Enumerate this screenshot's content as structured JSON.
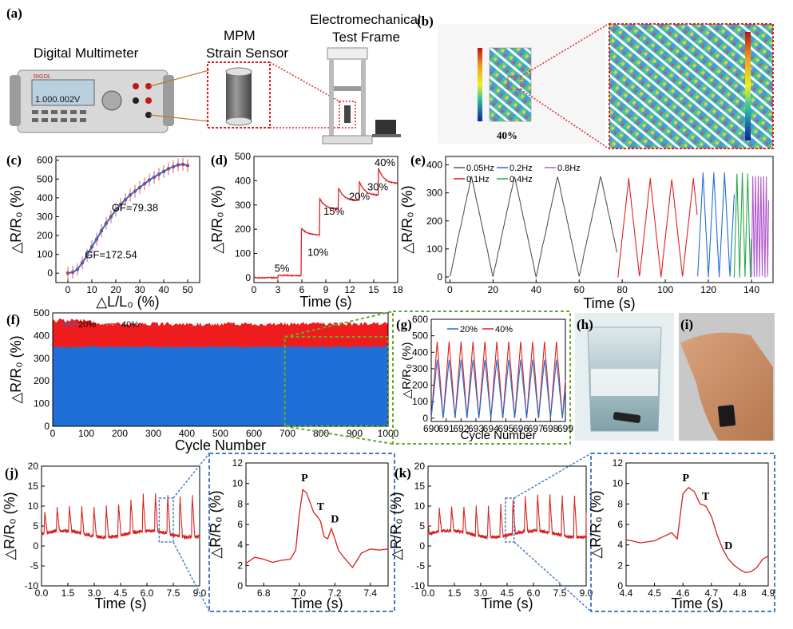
{
  "labels": {
    "a": "(a)",
    "b": "(b)",
    "c": "(c)",
    "d": "(d)",
    "e": "(e)",
    "f": "(f)",
    "g": "(g)",
    "h": "(h)",
    "i": "(i)",
    "j": "(j)",
    "k": "(k)"
  },
  "panel_a": {
    "multimeter": "Digital Multimeter",
    "sensor": "MPM\nStrain Sensor",
    "frame": "Electromechanical\nTest Frame",
    "display": "1.000.002V",
    "brand": "RIGOL"
  },
  "panel_b": {
    "strain": "40%"
  },
  "colors": {
    "red": "#e02020",
    "blue": "#1f6fd6",
    "gray": "#555555",
    "green": "#2aa84a",
    "purple": "#b05ad0",
    "dred": "#d62020"
  },
  "chart_data": [
    {
      "id": "c",
      "type": "scatter",
      "xlabel": "△L/L₀ (%)",
      "ylabel": "△R/R₀ (%)",
      "xlim": [
        -5,
        55
      ],
      "ylim": [
        -50,
        620
      ],
      "xticks": [
        0,
        10,
        20,
        30,
        40,
        50
      ],
      "yticks": [
        0,
        100,
        200,
        300,
        400,
        500,
        600
      ],
      "x": [
        0,
        2,
        4,
        6,
        8,
        10,
        12,
        14,
        16,
        18,
        20,
        22,
        24,
        26,
        28,
        30,
        32,
        34,
        36,
        38,
        40,
        42,
        44,
        46,
        48,
        50
      ],
      "y": [
        0,
        5,
        20,
        55,
        95,
        140,
        180,
        225,
        265,
        300,
        335,
        365,
        390,
        415,
        435,
        455,
        475,
        495,
        510,
        525,
        540,
        555,
        565,
        575,
        578,
        572
      ],
      "annotations": [
        {
          "text": "GF=172.54",
          "x": 18,
          "y": 80
        },
        {
          "text": "GF=79.38",
          "x": 28,
          "y": 330
        }
      ]
    },
    {
      "id": "d",
      "type": "line",
      "xlabel": "Time (s)",
      "ylabel": "△R/R₀ (%)",
      "xlim": [
        0,
        18
      ],
      "ylim": [
        -20,
        500
      ],
      "xticks": [
        0,
        3,
        6,
        9,
        12,
        15,
        18
      ],
      "yticks": [
        0,
        100,
        200,
        300,
        400,
        500
      ],
      "steps": [
        {
          "t": 3,
          "v": 10,
          "label": "5%"
        },
        {
          "t": 5.9,
          "v": 200,
          "label": "10%"
        },
        {
          "t": 8.2,
          "v": 320,
          "label": "15%"
        },
        {
          "t": 10.6,
          "v": 360,
          "label": "20%"
        },
        {
          "t": 13.2,
          "v": 385,
          "label": "30%"
        },
        {
          "t": 15.6,
          "v": 440,
          "label": "40%"
        }
      ]
    },
    {
      "id": "e",
      "type": "line",
      "xlabel": "Time (s)",
      "ylabel": "△R/R₀ (%)",
      "xlim": [
        -2,
        150
      ],
      "ylim": [
        -20,
        430
      ],
      "xticks": [
        0,
        20,
        40,
        60,
        80,
        100,
        120,
        140
      ],
      "yticks": [
        0,
        100,
        200,
        300,
        400
      ],
      "series": [
        {
          "name": "0.05Hz",
          "t0": 0,
          "t1": 78,
          "freq": 0.05,
          "amp": 360
        },
        {
          "name": "0.1Hz",
          "t0": 78,
          "t1": 115,
          "freq": 0.1,
          "amp": 350
        },
        {
          "name": "0.2Hz",
          "t0": 115,
          "t1": 132,
          "freq": 0.2,
          "amp": 370
        },
        {
          "name": "0.4Hz",
          "t0": 132,
          "t1": 140,
          "freq": 0.4,
          "amp": 370
        },
        {
          "name": "0.8Hz",
          "t0": 140,
          "t1": 148,
          "freq": 0.8,
          "amp": 360
        }
      ]
    },
    {
      "id": "f",
      "type": "area",
      "xlabel": "Cycle Number",
      "ylabel": "△R/R₀ (%)",
      "xlim": [
        0,
        1000
      ],
      "ylim": [
        0,
        500
      ],
      "xticks": [
        0,
        100,
        200,
        300,
        400,
        500,
        600,
        700,
        800,
        900,
        1000
      ],
      "yticks": [
        0,
        100,
        200,
        300,
        400,
        500
      ],
      "series": [
        {
          "name": "20%",
          "max": 355
        },
        {
          "name": "40%",
          "max": 460
        }
      ]
    },
    {
      "id": "g",
      "type": "line",
      "xlabel": "Cycle Number",
      "ylabel": "△R/R₀ (%)",
      "xlim": [
        690,
        699
      ],
      "ylim": [
        -20,
        600
      ],
      "xticks": [
        690,
        691,
        692,
        693,
        694,
        695,
        696,
        697,
        698,
        699
      ],
      "yticks": [
        0,
        100,
        200,
        300,
        400,
        500,
        600
      ],
      "series": [
        {
          "name": "20%",
          "amp": 355
        },
        {
          "name": "40%",
          "amp": 465
        }
      ]
    },
    {
      "id": "j",
      "type": "line",
      "xlabel": "Time (s)",
      "ylabel": "△R/R₀ (%)",
      "xlim": [
        0,
        9
      ],
      "ylim": [
        -10,
        20
      ],
      "xticks": [
        "0.0",
        "1.5",
        "3.0",
        "4.5",
        "6.0",
        "7.5",
        "9.0"
      ],
      "yticks": [
        -10,
        -5,
        0,
        5,
        10,
        15,
        20
      ]
    },
    {
      "id": "j2",
      "type": "line",
      "xlabel": "Time (s)",
      "ylabel": "△R/R₀ (%)",
      "xlim": [
        6.7,
        7.5
      ],
      "ylim": [
        0,
        12
      ],
      "xticks": [
        "6.8",
        "7.0",
        "7.2",
        "7.4"
      ],
      "yticks": [
        0,
        2,
        4,
        6,
        8,
        10,
        12
      ],
      "x": [
        6.7,
        6.75,
        6.8,
        6.85,
        6.9,
        6.95,
        6.98,
        7.0,
        7.02,
        7.04,
        7.06,
        7.08,
        7.1,
        7.12,
        7.14,
        7.16,
        7.18,
        7.2,
        7.22,
        7.25,
        7.3,
        7.35,
        7.4,
        7.45,
        7.5
      ],
      "y": [
        2.2,
        2.8,
        2.6,
        2.3,
        2.5,
        2.6,
        3.5,
        7,
        9.4,
        9.1,
        8.2,
        7.2,
        6.8,
        6.3,
        4.8,
        4.6,
        5.6,
        4.6,
        3.5,
        2.8,
        1.8,
        3.2,
        3.6,
        3.5,
        3.6
      ],
      "peaks": [
        {
          "text": "P",
          "x": 7.03,
          "y": 10.2
        },
        {
          "text": "T",
          "x": 7.12,
          "y": 7.4
        },
        {
          "text": "D",
          "x": 7.2,
          "y": 6.2
        }
      ]
    },
    {
      "id": "k",
      "type": "line",
      "xlabel": "Time (s)",
      "ylabel": "△R/R₀ (%)",
      "xlim": [
        0,
        9
      ],
      "ylim": [
        -10,
        20
      ],
      "xticks": [
        "0.0",
        "1.5",
        "3.0",
        "4.5",
        "6.0",
        "7.5",
        "9.0"
      ],
      "yticks": [
        -10,
        -5,
        0,
        5,
        10,
        15,
        20
      ]
    },
    {
      "id": "k2",
      "type": "line",
      "xlabel": "Time (s)",
      "ylabel": "△R/R₀ (%)",
      "xlim": [
        4.4,
        4.9
      ],
      "ylim": [
        0,
        12
      ],
      "xticks": [
        "4.4",
        "4.5",
        "4.6",
        "4.7",
        "4.8",
        "4.9"
      ],
      "yticks": [
        0,
        2,
        4,
        6,
        8,
        10,
        12
      ],
      "x": [
        4.4,
        4.42,
        4.45,
        4.5,
        4.53,
        4.56,
        4.58,
        4.6,
        4.62,
        4.64,
        4.66,
        4.68,
        4.7,
        4.72,
        4.74,
        4.76,
        4.78,
        4.8,
        4.82,
        4.84,
        4.86,
        4.88,
        4.9
      ],
      "y": [
        4.5,
        4.4,
        4.2,
        4.4,
        4.8,
        5.2,
        4.6,
        9.0,
        9.6,
        9.2,
        8.0,
        7.8,
        6.8,
        5.0,
        3.6,
        2.6,
        2.0,
        1.6,
        1.3,
        1.4,
        1.8,
        2.6,
        2.9
      ],
      "peaks": [
        {
          "text": "P",
          "x": 4.61,
          "y": 10.2
        },
        {
          "text": "T",
          "x": 4.68,
          "y": 8.4
        },
        {
          "text": "D",
          "x": 4.76,
          "y": 3.6
        }
      ]
    }
  ]
}
